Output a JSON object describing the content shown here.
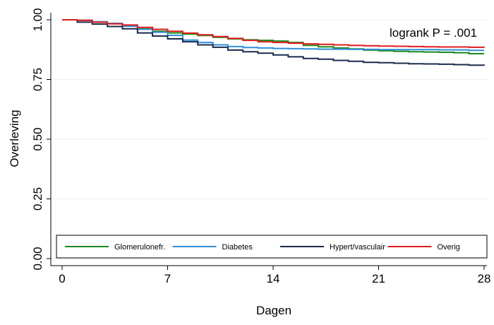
{
  "chart_data": {
    "type": "line",
    "step": true,
    "xlabel": "Dagen",
    "ylabel": "Overleving",
    "xlim": [
      0,
      28
    ],
    "ylim": [
      0,
      1
    ],
    "xticks": [
      0,
      7,
      14,
      21,
      28
    ],
    "yticks": [
      "0.00",
      "0.25",
      "0.50",
      "0.75",
      "1.00"
    ],
    "grid": "horizontal",
    "legend_position": "bottom-inside",
    "annotation": "logrank P = .001",
    "series": [
      {
        "name": "Glomerulonefr.",
        "color": "#1a8a1a",
        "x": [
          0,
          1,
          2,
          3,
          4,
          5,
          6,
          7,
          8,
          9,
          10,
          11,
          12,
          13,
          14,
          15,
          16,
          17,
          18,
          19,
          20,
          21,
          22,
          23,
          24,
          25,
          26,
          27,
          28
        ],
        "y": [
          1.0,
          0.998,
          0.99,
          0.985,
          0.975,
          0.962,
          0.952,
          0.945,
          0.94,
          0.934,
          0.927,
          0.92,
          0.916,
          0.914,
          0.911,
          0.905,
          0.893,
          0.887,
          0.882,
          0.878,
          0.873,
          0.87,
          0.868,
          0.866,
          0.865,
          0.864,
          0.862,
          0.858,
          0.858
        ]
      },
      {
        "name": "Diabetes",
        "color": "#2f8fdc",
        "x": [
          0,
          1,
          2,
          3,
          4,
          5,
          6,
          7,
          8,
          9,
          10,
          11,
          12,
          13,
          14,
          15,
          16,
          17,
          18,
          19,
          20,
          21,
          22,
          23,
          24,
          25,
          26,
          27,
          28
        ],
        "y": [
          1.0,
          0.997,
          0.992,
          0.985,
          0.973,
          0.96,
          0.948,
          0.935,
          0.915,
          0.905,
          0.895,
          0.888,
          0.884,
          0.882,
          0.88,
          0.879,
          0.878,
          0.877,
          0.877,
          0.876,
          0.876,
          0.875,
          0.875,
          0.875,
          0.875,
          0.874,
          0.874,
          0.872,
          0.872
        ]
      },
      {
        "name": "Hypert/vasculair",
        "color": "#1a2b4c",
        "x": [
          0,
          1,
          2,
          3,
          4,
          5,
          6,
          7,
          8,
          9,
          10,
          11,
          12,
          13,
          14,
          15,
          16,
          17,
          18,
          19,
          20,
          21,
          22,
          23,
          24,
          25,
          26,
          27,
          28
        ],
        "y": [
          1.0,
          0.99,
          0.982,
          0.972,
          0.962,
          0.945,
          0.932,
          0.92,
          0.908,
          0.895,
          0.885,
          0.873,
          0.866,
          0.86,
          0.853,
          0.845,
          0.838,
          0.835,
          0.83,
          0.826,
          0.822,
          0.82,
          0.818,
          0.816,
          0.815,
          0.814,
          0.812,
          0.81,
          0.808
        ]
      },
      {
        "name": "Overig",
        "color": "#e01b1b",
        "x": [
          0,
          1,
          2,
          3,
          4,
          5,
          6,
          7,
          8,
          9,
          10,
          11,
          12,
          13,
          14,
          15,
          16,
          17,
          18,
          19,
          20,
          21,
          22,
          23,
          24,
          25,
          26,
          27,
          28
        ],
        "y": [
          1.0,
          0.998,
          0.99,
          0.983,
          0.978,
          0.968,
          0.96,
          0.952,
          0.944,
          0.937,
          0.93,
          0.922,
          0.914,
          0.908,
          0.905,
          0.902,
          0.899,
          0.897,
          0.895,
          0.893,
          0.891,
          0.89,
          0.889,
          0.888,
          0.887,
          0.886,
          0.886,
          0.885,
          0.884
        ]
      }
    ]
  }
}
